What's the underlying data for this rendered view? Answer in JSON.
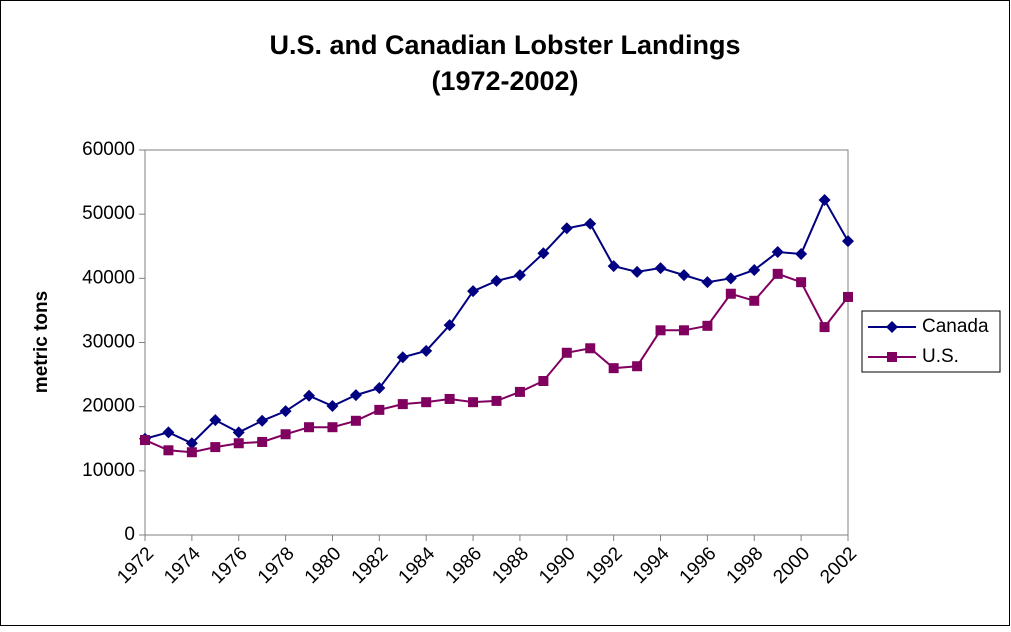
{
  "chart_data": {
    "type": "line",
    "title": "U.S. and Canadian Lobster Landings",
    "subtitle": "(1972-2002)",
    "y_label": "metric tons",
    "x": [
      1972,
      1973,
      1974,
      1975,
      1976,
      1977,
      1978,
      1979,
      1980,
      1981,
      1982,
      1983,
      1984,
      1985,
      1986,
      1987,
      1988,
      1989,
      1990,
      1991,
      1992,
      1993,
      1994,
      1995,
      1996,
      1997,
      1998,
      1999,
      2000,
      2001,
      2002
    ],
    "xlim": [
      1972,
      2002
    ],
    "xticks": [
      1972,
      1974,
      1976,
      1978,
      1980,
      1982,
      1984,
      1986,
      1988,
      1990,
      1992,
      1994,
      1996,
      1998,
      2000,
      2002
    ],
    "ylim": [
      0,
      60000
    ],
    "yticks": [
      0,
      10000,
      20000,
      30000,
      40000,
      50000,
      60000
    ],
    "grid": false,
    "legend": "right",
    "series": [
      {
        "name": "Canada",
        "color": "#000080",
        "marker": "diamond",
        "values": [
          15000,
          16000,
          14300,
          17900,
          16000,
          17800,
          19300,
          21700,
          20100,
          21800,
          22900,
          27700,
          28700,
          32700,
          38000,
          39600,
          40500,
          43900,
          47800,
          48500,
          41900,
          41000,
          41600,
          40500,
          39400,
          40000,
          41300,
          44100,
          43800,
          52200,
          45800
        ]
      },
      {
        "name": "U.S.",
        "color": "#800060",
        "marker": "square",
        "values": [
          14800,
          13200,
          12900,
          13700,
          14300,
          14500,
          15700,
          16800,
          16800,
          17800,
          19500,
          20400,
          20700,
          21200,
          20700,
          20900,
          22300,
          24000,
          28400,
          29100,
          26000,
          26300,
          31900,
          31900,
          32600,
          37600,
          36500,
          40700,
          39400,
          32400,
          37100
        ]
      }
    ]
  }
}
